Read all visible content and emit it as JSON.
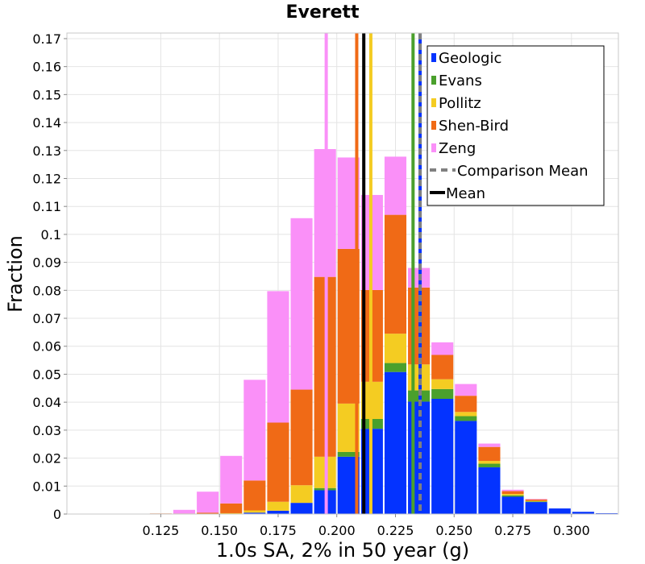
{
  "chart_data": {
    "type": "bar",
    "stacked": true,
    "title": "Everett",
    "xlabel": "1.0s SA, 2% in 50 year (g)",
    "ylabel": "Fraction",
    "xlim": [
      0.085,
      0.32
    ],
    "ylim": [
      0,
      0.172
    ],
    "bin_width": 0.01,
    "x_ticks": [
      "0.125",
      "0.150",
      "0.175",
      "0.200",
      "0.225",
      "0.250",
      "0.275",
      "0.300"
    ],
    "y_ticks": [
      "0",
      "0.01",
      "0.02",
      "0.03",
      "0.04",
      "0.05",
      "0.06",
      "0.07",
      "0.08",
      "0.09",
      "0.1",
      "0.11",
      "0.12",
      "0.13",
      "0.14",
      "0.15",
      "0.16",
      "0.17"
    ],
    "grid": true,
    "legend_position": "top-right",
    "x": [
      0.125,
      0.135,
      0.145,
      0.155,
      0.165,
      0.175,
      0.185,
      0.195,
      0.205,
      0.215,
      0.225,
      0.235,
      0.245,
      0.255,
      0.265,
      0.275,
      0.285,
      0.295,
      0.305,
      0.315
    ],
    "series": [
      {
        "name": "Geologic",
        "color": "#0433ff",
        "values": [
          0,
          0,
          0,
          0,
          0.0005,
          0.0012,
          0.004,
          0.0085,
          0.0205,
          0.0305,
          0.0508,
          0.0402,
          0.0412,
          0.0333,
          0.0167,
          0.0062,
          0.0043,
          0.002,
          0.0008,
          0.0003
        ]
      },
      {
        "name": "Evans",
        "color": "#4aa02c",
        "values": [
          0,
          0,
          0,
          0,
          0,
          0,
          0,
          0.0008,
          0.0017,
          0.0035,
          0.0032,
          0.004,
          0.0035,
          0.0017,
          0.0013,
          0.0005,
          0.0002,
          0,
          0,
          0
        ]
      },
      {
        "name": "Pollitz",
        "color": "#f4cc22",
        "values": [
          0,
          0,
          0,
          0.0003,
          0.0008,
          0.0032,
          0.0063,
          0.0112,
          0.0173,
          0.0133,
          0.0105,
          0.0093,
          0.0035,
          0.0015,
          0.001,
          0.0005,
          0.0002,
          0,
          0,
          0
        ]
      },
      {
        "name": "Shen-Bird",
        "color": "#f06a16",
        "values": [
          0.0002,
          0.0002,
          0.0005,
          0.0035,
          0.0107,
          0.0283,
          0.0342,
          0.0643,
          0.0553,
          0.0328,
          0.0425,
          0.0275,
          0.0087,
          0.0058,
          0.005,
          0.001,
          0.0005,
          0,
          0,
          0
        ]
      },
      {
        "name": "Zeng",
        "color": "#fa90f8",
        "values": [
          0,
          0.0013,
          0.0075,
          0.017,
          0.036,
          0.047,
          0.0613,
          0.0457,
          0.0327,
          0.034,
          0.0208,
          0.007,
          0.0045,
          0.0042,
          0.0012,
          0.0005,
          0.0002,
          0,
          0,
          0
        ]
      }
    ],
    "vertical_lines": [
      {
        "name": "Geologic",
        "x": 0.2355,
        "color": "#0433ff",
        "style": "solid"
      },
      {
        "name": "Evans",
        "x": 0.2325,
        "color": "#4aa02c",
        "style": "solid"
      },
      {
        "name": "Pollitz",
        "x": 0.2145,
        "color": "#f4cc22",
        "style": "solid"
      },
      {
        "name": "Shen-Bird",
        "x": 0.2085,
        "color": "#f06a16",
        "style": "solid"
      },
      {
        "name": "Zeng",
        "x": 0.1955,
        "color": "#fa90f8",
        "style": "solid"
      },
      {
        "name": "Comparison Mean",
        "x": 0.2355,
        "color": "#808080",
        "style": "dashed"
      },
      {
        "name": "Mean",
        "x": 0.2115,
        "color": "#000000",
        "style": "solid"
      }
    ],
    "legend": [
      {
        "label": "Geologic",
        "color": "#0433ff",
        "kind": "box"
      },
      {
        "label": "Evans",
        "color": "#4aa02c",
        "kind": "box"
      },
      {
        "label": "Pollitz",
        "color": "#f4cc22",
        "kind": "box"
      },
      {
        "label": "Shen-Bird",
        "color": "#f06a16",
        "kind": "box"
      },
      {
        "label": "Zeng",
        "color": "#fa90f8",
        "kind": "box"
      },
      {
        "label": "Comparison Mean",
        "color": "#808080",
        "kind": "dashed"
      },
      {
        "label": "Mean",
        "color": "#000000",
        "kind": "line"
      }
    ]
  }
}
